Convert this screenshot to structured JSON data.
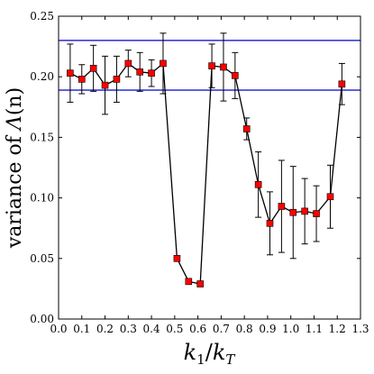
{
  "chart_data": {
    "type": "line",
    "xlabel_main": "k",
    "xlabel_sub1": "1",
    "xlabel_sep": "/",
    "xlabel_main2": "k",
    "xlabel_sub2": "T",
    "ylabel_prefix": "variance of ",
    "ylabel_symbol": "Λ",
    "ylabel_suffix": "(n)",
    "xlim": [
      0.0,
      1.3
    ],
    "ylim": [
      0.0,
      0.25
    ],
    "xticks": [
      "0.0",
      "0.1",
      "0.2",
      "0.3",
      "0.4",
      "0.5",
      "0.6",
      "0.7",
      "0.8",
      "0.9",
      "1.0",
      "1.1",
      "1.2",
      "1.3"
    ],
    "yticks": [
      "0.00",
      "0.05",
      "0.10",
      "0.15",
      "0.20",
      "0.25"
    ],
    "hlines": [
      0.23,
      0.189
    ],
    "hline_color": "#0000cc",
    "line_color": "#000000",
    "marker_color": "#ff0000",
    "series": [
      {
        "x": [
          0.05,
          0.1,
          0.15,
          0.2,
          0.25,
          0.3,
          0.35,
          0.4,
          0.45,
          0.51,
          0.56,
          0.61,
          0.66,
          0.71,
          0.76,
          0.81,
          0.86,
          0.91,
          0.96,
          1.01,
          1.06,
          1.11,
          1.17,
          1.22
        ],
        "y": [
          0.203,
          0.198,
          0.207,
          0.193,
          0.198,
          0.211,
          0.204,
          0.203,
          0.211,
          0.05,
          0.031,
          0.029,
          0.209,
          0.208,
          0.201,
          0.157,
          0.111,
          0.079,
          0.093,
          0.088,
          0.089,
          0.087,
          0.101,
          0.194
        ],
        "err": [
          0.024,
          0.012,
          0.019,
          0.024,
          0.019,
          0.011,
          0.016,
          0.011,
          0.025,
          0,
          0,
          0,
          0.018,
          0.028,
          0.019,
          0.009,
          0.027,
          0.026,
          0.038,
          0.038,
          0.027,
          0.023,
          0.026,
          0.017
        ]
      }
    ]
  }
}
